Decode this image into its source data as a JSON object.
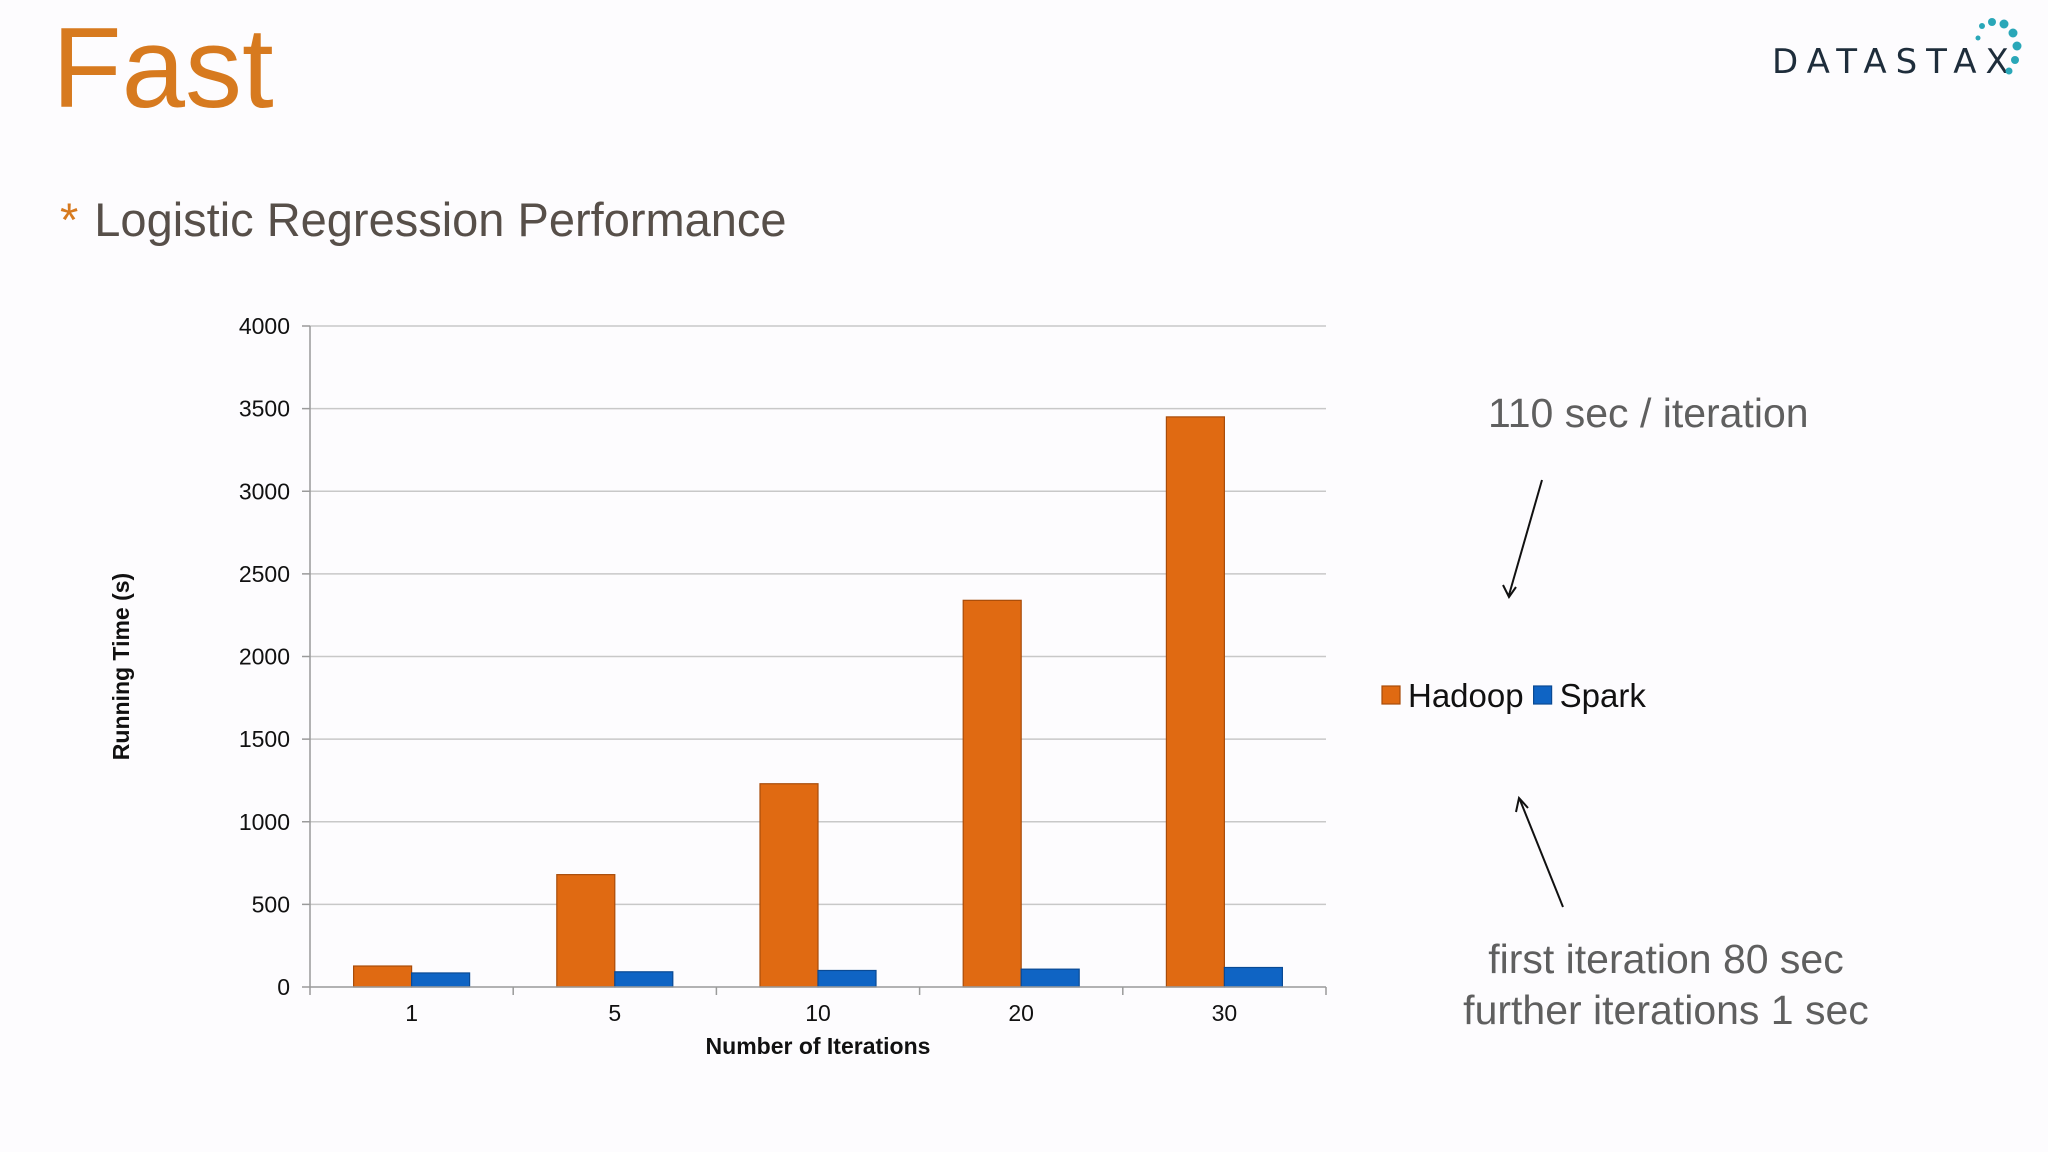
{
  "slide": {
    "title": "Fast",
    "subtitle_bullet": "*",
    "subtitle": "Logistic Regression Performance",
    "logo_text": "DATASTAX",
    "annotation_top": "110 sec / iteration",
    "annotation_bottom_line1": "first iteration 80 sec",
    "annotation_bottom_line2": "further iterations 1 sec"
  },
  "colors": {
    "title": "#d77a1f",
    "hadoop": "#e06a12",
    "spark": "#0f64c4",
    "logo_dots": "#2aa7b8"
  },
  "icons": [
    "datastax-logo-icon",
    "arrow-icon"
  ],
  "chart_data": {
    "type": "bar",
    "categories": [
      "1",
      "5",
      "10",
      "20",
      "30"
    ],
    "series": [
      {
        "name": "Hadoop",
        "values": [
          127,
          680,
          1230,
          2340,
          3450
        ]
      },
      {
        "name": "Spark",
        "values": [
          85,
          92,
          100,
          108,
          118
        ]
      }
    ],
    "title": "",
    "xlabel": "Number of Iterations",
    "ylabel": "Running Time (s)",
    "ylim": [
      0,
      4000
    ],
    "yticks": [
      0,
      500,
      1000,
      1500,
      2000,
      2500,
      3000,
      3500,
      4000
    ],
    "grid": true,
    "legend": "right"
  }
}
